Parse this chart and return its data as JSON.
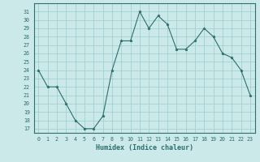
{
  "x": [
    0,
    1,
    2,
    3,
    4,
    5,
    6,
    7,
    8,
    9,
    10,
    11,
    12,
    13,
    14,
    15,
    16,
    17,
    18,
    19,
    20,
    21,
    22,
    23
  ],
  "y": [
    24,
    22,
    22,
    20,
    18,
    17,
    17,
    18.5,
    24,
    27.5,
    27.5,
    31,
    29,
    30.5,
    29.5,
    26.5,
    26.5,
    27.5,
    29,
    28,
    26,
    25.5,
    24,
    21
  ],
  "line_color": "#2d6e6e",
  "marker": "*",
  "marker_size": 2.5,
  "bg_color": "#cce9e9",
  "grid_color": "#99cccc",
  "xlabel": "Humidex (Indice chaleur)",
  "ylim": [
    16.5,
    32
  ],
  "xlim": [
    -0.5,
    23.5
  ],
  "yticks": [
    17,
    18,
    19,
    20,
    21,
    22,
    23,
    24,
    25,
    26,
    27,
    28,
    29,
    30,
    31
  ],
  "xticks": [
    0,
    1,
    2,
    3,
    4,
    5,
    6,
    7,
    8,
    9,
    10,
    11,
    12,
    13,
    14,
    15,
    16,
    17,
    18,
    19,
    20,
    21,
    22,
    23
  ],
  "tick_fontsize": 4.8,
  "xlabel_fontsize": 6.0
}
